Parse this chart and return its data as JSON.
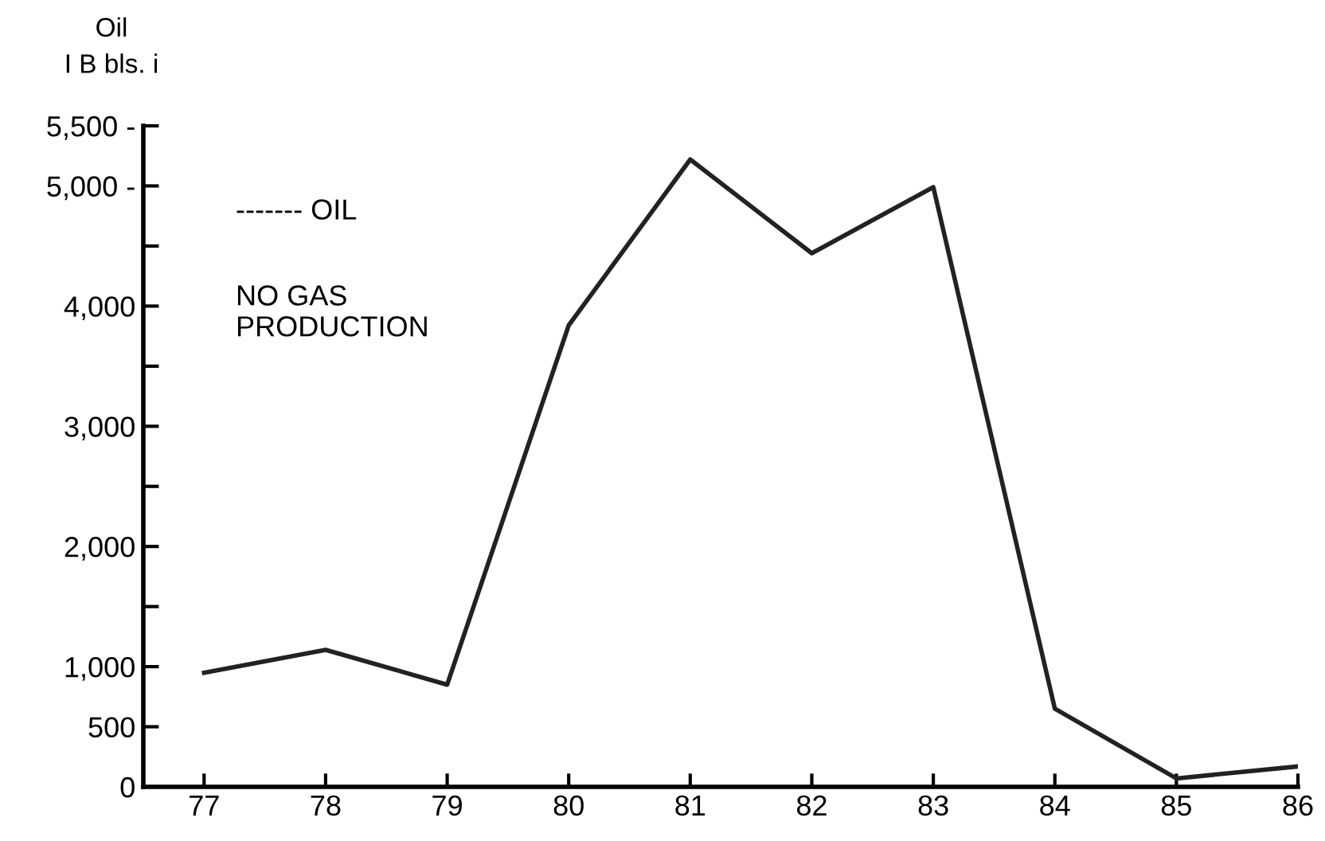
{
  "chart_data": {
    "type": "line",
    "ylabel": "Oil\nI B bls. i",
    "x": [
      77,
      78,
      79,
      80,
      81,
      82,
      83,
      84,
      85,
      86
    ],
    "series": [
      {
        "color": "#222222",
        "values": [
          950,
          1140,
          850,
          3840,
          5220,
          4440,
          4990,
          650,
          70,
          170
        ]
      }
    ],
    "xlim": [
      76.5,
      86
    ],
    "xticks": [
      77,
      78,
      79,
      80,
      81,
      82,
      83,
      84,
      85,
      86
    ],
    "ylim": [
      0,
      5500
    ],
    "yticks": [
      0,
      500,
      {
        "value": 1000,
        "label": "1,000"
      },
      {
        "value": 1500,
        "label": null
      },
      {
        "value": 2000,
        "label": "2,000"
      },
      {
        "value": 2500,
        "label": null
      },
      {
        "value": 3000,
        "label": "3,000"
      },
      {
        "value": 3500,
        "label": null
      },
      {
        "value": 4000,
        "label": "4,000"
      },
      {
        "value": 4500,
        "label": null
      },
      {
        "value": 5000,
        "label": "5,000 -"
      },
      {
        "value": 5500,
        "label": "5,500 -"
      }
    ],
    "annotations": [
      "------- OIL",
      "NO GAS\nPRODUCTION"
    ],
    "grid": false,
    "legend": false,
    "marker": "none",
    "line_style": "solid"
  }
}
